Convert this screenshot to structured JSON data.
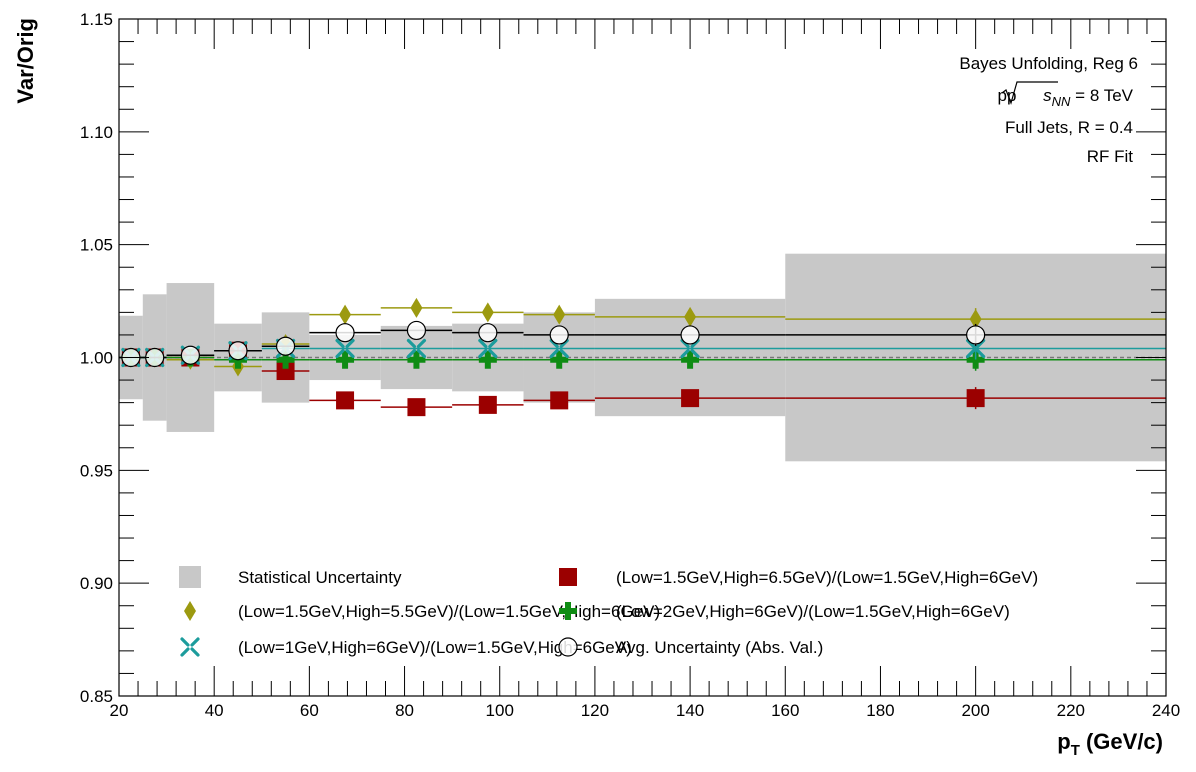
{
  "chart_data": {
    "type": "scatter",
    "xlabel": "p",
    "xlabel_sub": "T",
    "xlabel_unit": " (GeV/c)",
    "ylabel": "Var/Orig",
    "xlim": [
      20,
      240
    ],
    "ylim": [
      0.85,
      1.15
    ],
    "x_ticks": [
      20,
      40,
      60,
      80,
      100,
      120,
      140,
      160,
      180,
      200,
      220,
      240
    ],
    "y_ticks": [
      0.85,
      0.9,
      0.95,
      1.0,
      1.05,
      1.1,
      1.15
    ],
    "y_tick_labels": [
      "0.85",
      "0.90",
      "0.95",
      "1.00",
      "1.05",
      "1.10",
      "1.15"
    ],
    "bins": [
      [
        20,
        25
      ],
      [
        25,
        30
      ],
      [
        30,
        40
      ],
      [
        40,
        50
      ],
      [
        50,
        60
      ],
      [
        60,
        75
      ],
      [
        75,
        90
      ],
      [
        90,
        105
      ],
      [
        105,
        120
      ],
      [
        120,
        160
      ],
      [
        160,
        240
      ]
    ],
    "x": [
      22.5,
      27.5,
      35,
      45,
      55,
      67.5,
      82.5,
      97.5,
      112.5,
      140,
      200
    ],
    "reference_line": 1.0,
    "annotations": {
      "line1": "Bayes Unfolding, Reg 6",
      "line2_prefix": "pp ",
      "line2_s": "s",
      "line2_sub": "NN",
      "line2_suffix": " = 8 TeV",
      "line3": "Full Jets, R = 0.4",
      "line4": "RF Fit"
    },
    "series": [
      {
        "key": "stat",
        "name": "Statistical Uncertainty",
        "color": "#c8c8c8",
        "marker": "band",
        "values": [
          0.0185,
          0.028,
          0.033,
          0.015,
          0.02,
          0.01,
          0.014,
          0.015,
          0.02,
          0.026,
          0.046
        ]
      },
      {
        "key": "high65",
        "name": "(Low=1.5GeV,High=6.5GeV)/(Low=1.5GeV,High=6GeV)",
        "color": "#9b0000",
        "marker": "square",
        "values": [
          1.0,
          1.0,
          1.0,
          1.003,
          0.994,
          0.981,
          0.978,
          0.979,
          0.981,
          0.982,
          0.982
        ]
      },
      {
        "key": "high55",
        "name": "(Low=1.5GeV,High=5.5GeV)/(Low=1.5GeV,High=6GeV)",
        "color": "#9c9a10",
        "marker": "diamond",
        "values": [
          1.0,
          1.0,
          0.999,
          0.996,
          1.006,
          1.019,
          1.022,
          1.02,
          1.019,
          1.018,
          1.017
        ]
      },
      {
        "key": "low2",
        "name": "(Low=2GeV,High=6GeV)/(Low=1.5GeV,High=6GeV)",
        "color": "#0f8c14",
        "marker": "cross",
        "values": [
          1.0,
          1.0,
          1.0,
          0.999,
          0.999,
          0.999,
          0.999,
          0.999,
          0.999,
          0.999,
          0.999
        ]
      },
      {
        "key": "low1",
        "name": "(Low=1GeV,High=6GeV)/(Low=1.5GeV,High=6GeV)",
        "color": "#1c9c9c",
        "marker": "star",
        "values": [
          1.0,
          1.0,
          1.001,
          1.003,
          1.004,
          1.004,
          1.004,
          1.004,
          1.004,
          1.004,
          1.004
        ]
      },
      {
        "key": "avg",
        "name": "Avg. Uncertainty (Abs. Val.)",
        "color": "#000000",
        "marker": "open-circle",
        "values": [
          1.0,
          1.0,
          1.001,
          1.003,
          1.005,
          1.011,
          1.012,
          1.011,
          1.01,
          1.01,
          1.01
        ]
      }
    ]
  }
}
